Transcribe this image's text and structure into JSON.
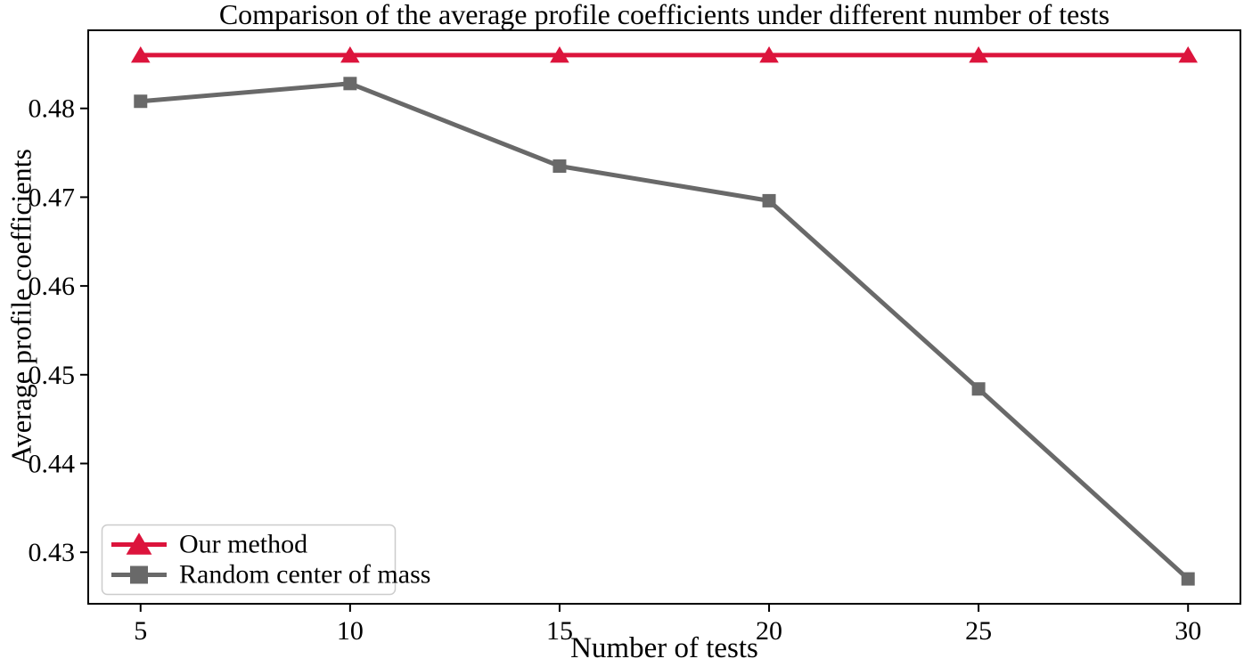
{
  "chart_data": {
    "type": "line",
    "title": "Comparison of the average profile coefficients under different number of tests",
    "xlabel": "Number of tests",
    "ylabel": "Average profile coefficients",
    "x": [
      5,
      10,
      15,
      20,
      25,
      30
    ],
    "xticklabels": [
      "5",
      "10",
      "15",
      "20",
      "25",
      "30"
    ],
    "yticks": [
      0.43,
      0.44,
      0.45,
      0.46,
      0.47,
      0.48
    ],
    "yticklabels": [
      "0.43",
      "0.44",
      "0.45",
      "0.46",
      "0.47",
      "0.48"
    ],
    "xlim": [
      3.75,
      31.25
    ],
    "ylim": [
      0.4242,
      0.4888
    ],
    "grid": false,
    "series": [
      {
        "name": "Our method",
        "color": "#dc143c",
        "marker": "triangle",
        "values": [
          0.486,
          0.486,
          0.486,
          0.486,
          0.486,
          0.486
        ]
      },
      {
        "name": "Random center of mass",
        "color": "#696969",
        "marker": "square",
        "values": [
          0.4808,
          0.4828,
          0.4735,
          0.4696,
          0.4484,
          0.427
        ]
      }
    ],
    "legend": {
      "position": "lower-left",
      "border_color": "#cccccc",
      "background": "#ffffff"
    },
    "colors": {
      "axis": "#000000",
      "text": "#000000",
      "background": "#ffffff"
    }
  }
}
